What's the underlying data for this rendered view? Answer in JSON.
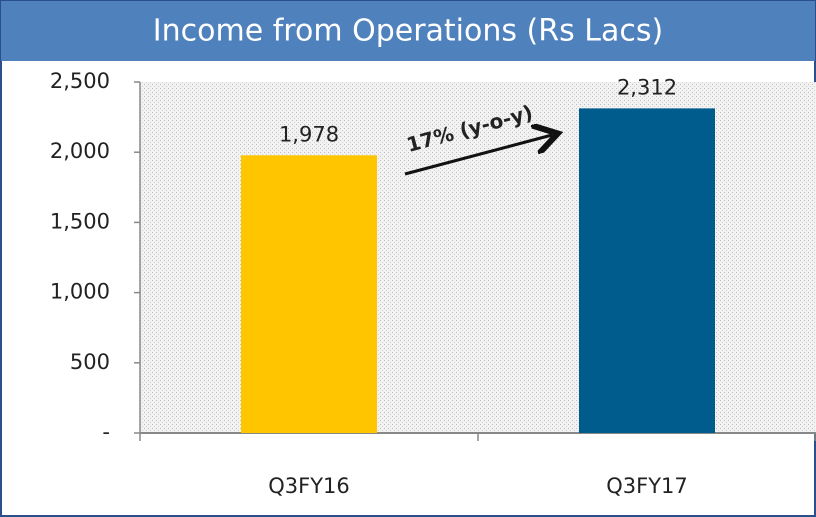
{
  "chart_data": {
    "type": "bar",
    "title": "Income from Operations (Rs Lacs)",
    "categories": [
      "Q3FY16",
      "Q3FY17"
    ],
    "values": [
      1978,
      2312
    ],
    "value_labels": [
      "1,978",
      "2,312"
    ],
    "colors": [
      "#ffc600",
      "#005c8c"
    ],
    "ylim": [
      0,
      2500
    ],
    "yticks": [
      {
        "value": 0,
        "label": "-"
      },
      500,
      {
        "value": 1000,
        "label": "1,000"
      },
      {
        "value": 1500,
        "label": "1,500"
      },
      {
        "value": 2000,
        "label": "2,000"
      },
      {
        "value": 2500,
        "label": "2,500"
      }
    ],
    "annotation": "17% (y-o-y)"
  }
}
